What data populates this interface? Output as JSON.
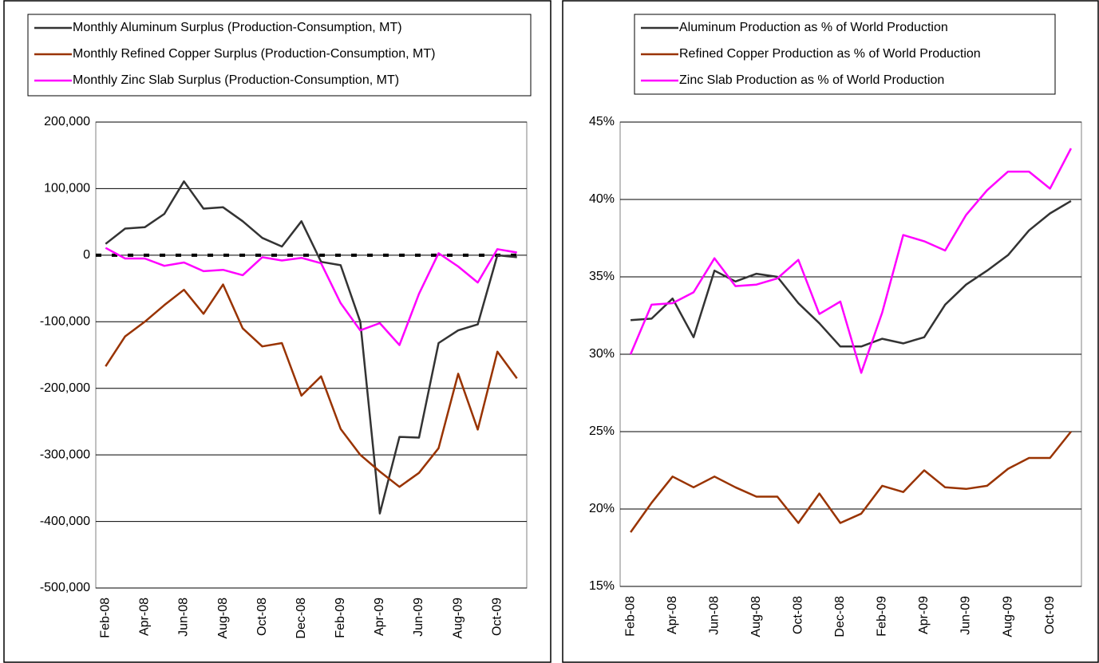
{
  "chart_data": [
    {
      "type": "line",
      "categories": [
        "Feb-08",
        null,
        "Apr-08",
        null,
        "Jun-08",
        null,
        "Aug-08",
        null,
        "Oct-08",
        null,
        "Dec-08",
        null,
        "Feb-09",
        null,
        "Apr-09",
        null,
        "Jun-09",
        null,
        "Aug-09",
        null,
        "Oct-09",
        null
      ],
      "series": [
        {
          "name": "Monthly Aluminum Surplus (Production-Consumption, MT)",
          "color": "#333333",
          "values": [
            17000,
            40000,
            42000,
            62000,
            111000,
            70000,
            72000,
            51000,
            26000,
            13000,
            51000,
            -10000,
            -15000,
            -100000,
            -388000,
            -273000,
            -274000,
            -132000,
            -113000,
            -104000,
            0,
            -3000
          ]
        },
        {
          "name": "Monthly Refined Copper Surplus (Production-Consumption, MT)",
          "color": "#993300",
          "values": [
            -167000,
            -122000,
            -100000,
            -75000,
            -52000,
            -88000,
            -44000,
            -110000,
            -137000,
            -132000,
            -211000,
            -182000,
            -261000,
            -300000,
            -325000,
            -348000,
            -327000,
            -290000,
            -178000,
            -262000,
            -145000,
            -185000
          ]
        },
        {
          "name": "Monthly Zinc Slab Surplus (Production-Consumption, MT)",
          "color": "#ff00ff",
          "values": [
            11000,
            -5000,
            -5000,
            -16000,
            -11000,
            -24000,
            -22000,
            -30000,
            -3000,
            -8000,
            -4000,
            -12000,
            -72000,
            -113000,
            -102000,
            -135000,
            -58000,
            3000,
            -17000,
            -41000,
            9000,
            4000
          ]
        }
      ],
      "ylim": [
        -500000,
        200000
      ],
      "yticks": [
        {
          "value": -500000,
          "label": "-500,000"
        },
        {
          "value": -400000,
          "label": "-400,000"
        },
        {
          "value": -300000,
          "label": "-300,000"
        },
        {
          "value": -200000,
          "label": "-200,000"
        },
        {
          "value": -100000,
          "label": "-100,000"
        },
        0,
        {
          "value": 100000,
          "label": "100,000"
        },
        {
          "value": 200000,
          "label": "200,000"
        }
      ],
      "grid": true,
      "legend": "top",
      "zero_line": true
    },
    {
      "type": "line",
      "categories": [
        "Feb-08",
        null,
        "Apr-08",
        null,
        "Jun-08",
        null,
        "Aug-08",
        null,
        "Oct-08",
        null,
        "Dec-08",
        null,
        "Feb-09",
        null,
        "Apr-09",
        null,
        "Jun-09",
        null,
        "Aug-09",
        null,
        "Oct-09",
        null
      ],
      "series": [
        {
          "name": "Aluminum Production as % of World Production",
          "color": "#333333",
          "values": [
            32.2,
            32.3,
            33.6,
            31.1,
            35.4,
            34.7,
            35.2,
            35.0,
            33.3,
            32.0,
            30.5,
            30.5,
            31.0,
            30.7,
            31.1,
            33.2,
            34.5,
            35.4,
            36.4,
            38.0,
            39.1,
            39.9
          ]
        },
        {
          "name": "Refined Copper Production as % of World Production",
          "color": "#993300",
          "values": [
            18.5,
            20.4,
            22.1,
            21.4,
            22.1,
            21.4,
            20.8,
            20.8,
            19.1,
            21.0,
            19.1,
            19.7,
            21.5,
            21.1,
            22.5,
            21.4,
            21.3,
            21.5,
            22.6,
            23.3,
            23.3,
            25.0
          ]
        },
        {
          "name": "Zinc Slab Production as % of World Production",
          "color": "#ff00ff",
          "values": [
            30.0,
            33.2,
            33.3,
            34.0,
            36.2,
            34.4,
            34.5,
            34.9,
            36.1,
            32.6,
            33.4,
            28.8,
            32.7,
            37.7,
            37.3,
            36.7,
            39.0,
            40.6,
            41.8,
            41.8,
            40.7,
            43.3
          ]
        }
      ],
      "ylim": [
        15,
        45
      ],
      "yticks": [
        {
          "value": 15,
          "label": "15%"
        },
        {
          "value": 20,
          "label": "20%"
        },
        {
          "value": 25,
          "label": "25%"
        },
        {
          "value": 30,
          "label": "30%"
        },
        {
          "value": 35,
          "label": "35%"
        },
        {
          "value": 40,
          "label": "40%"
        },
        {
          "value": 45,
          "label": "45%"
        }
      ],
      "grid": true,
      "legend": "top"
    }
  ]
}
